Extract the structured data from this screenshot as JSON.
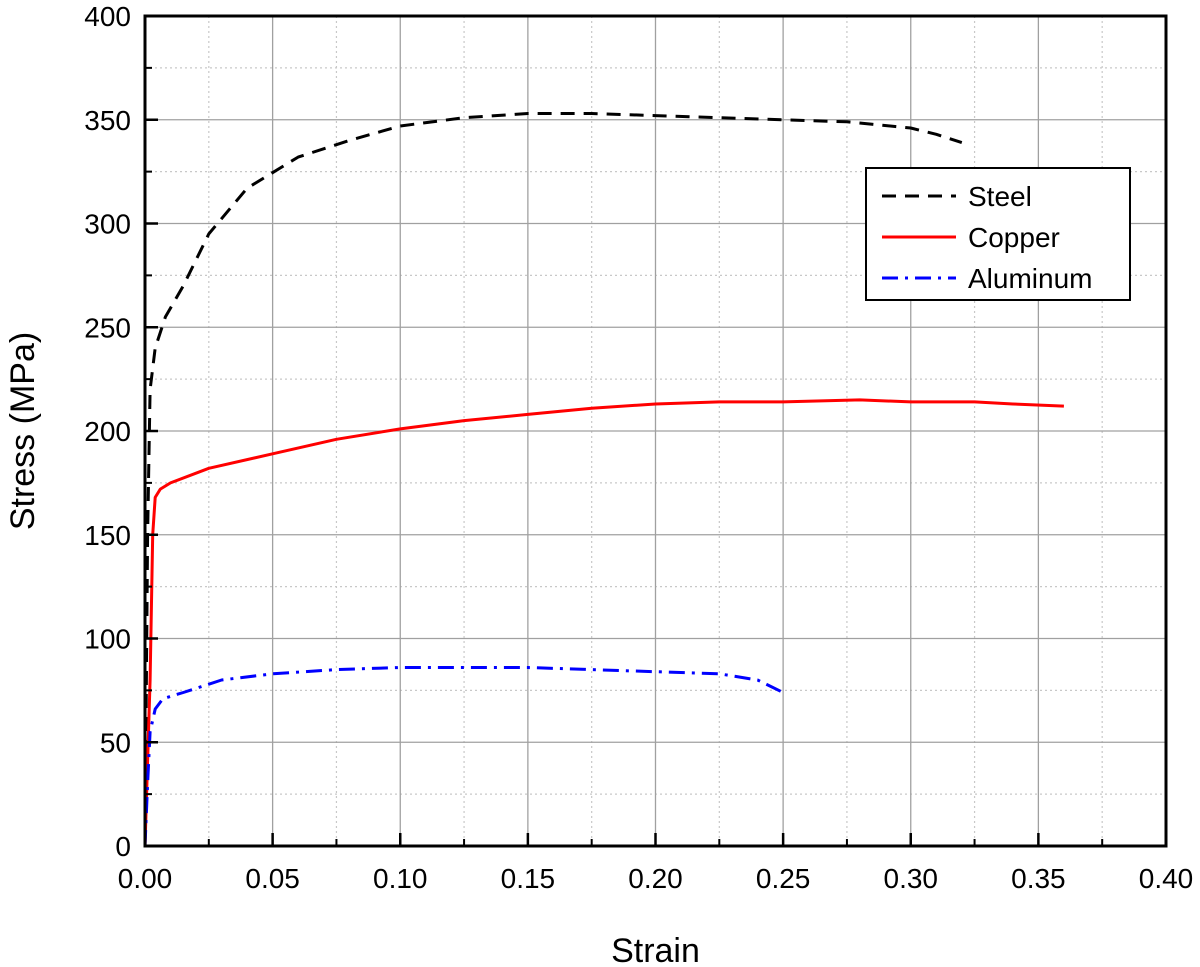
{
  "chart_data": {
    "type": "line",
    "title": "",
    "xlabel": "Strain",
    "ylabel": "Stress (MPa)",
    "xlim": [
      0,
      0.4
    ],
    "ylim": [
      0,
      400
    ],
    "xticks": [
      "0.00",
      "0.05",
      "0.10",
      "0.15",
      "0.20",
      "0.25",
      "0.30",
      "0.35",
      "0.40"
    ],
    "yticks": [
      "0",
      "50",
      "100",
      "150",
      "200",
      "250",
      "300",
      "350",
      "400"
    ],
    "grid": true,
    "legend_position": "top-right",
    "series": [
      {
        "name": "Steel",
        "color": "#000000",
        "style": "dash",
        "points": [
          [
            0,
            0
          ],
          [
            0.001,
            150
          ],
          [
            0.002,
            220
          ],
          [
            0.004,
            240
          ],
          [
            0.008,
            255
          ],
          [
            0.015,
            270
          ],
          [
            0.025,
            295
          ],
          [
            0.04,
            317
          ],
          [
            0.06,
            332
          ],
          [
            0.08,
            340
          ],
          [
            0.1,
            347
          ],
          [
            0.125,
            351
          ],
          [
            0.15,
            353
          ],
          [
            0.175,
            353
          ],
          [
            0.2,
            352
          ],
          [
            0.225,
            351
          ],
          [
            0.25,
            350
          ],
          [
            0.275,
            349
          ],
          [
            0.3,
            346
          ],
          [
            0.31,
            343
          ],
          [
            0.32,
            339
          ]
        ]
      },
      {
        "name": "Copper",
        "color": "#ff0000",
        "style": "solid",
        "points": [
          [
            0,
            0
          ],
          [
            0.002,
            80
          ],
          [
            0.003,
            150
          ],
          [
            0.004,
            168
          ],
          [
            0.006,
            172
          ],
          [
            0.01,
            175
          ],
          [
            0.025,
            182
          ],
          [
            0.05,
            189
          ],
          [
            0.075,
            196
          ],
          [
            0.1,
            201
          ],
          [
            0.125,
            205
          ],
          [
            0.15,
            208
          ],
          [
            0.175,
            211
          ],
          [
            0.2,
            213
          ],
          [
            0.225,
            214
          ],
          [
            0.25,
            214
          ],
          [
            0.28,
            215
          ],
          [
            0.3,
            214
          ],
          [
            0.325,
            214
          ],
          [
            0.34,
            213
          ],
          [
            0.36,
            212
          ]
        ]
      },
      {
        "name": "Aluminum",
        "color": "#0000ff",
        "style": "dashdot",
        "points": [
          [
            0,
            0
          ],
          [
            0.001,
            30
          ],
          [
            0.002,
            55
          ],
          [
            0.004,
            66
          ],
          [
            0.007,
            71
          ],
          [
            0.015,
            74
          ],
          [
            0.03,
            80
          ],
          [
            0.05,
            83
          ],
          [
            0.075,
            85
          ],
          [
            0.1,
            86
          ],
          [
            0.125,
            86
          ],
          [
            0.15,
            86
          ],
          [
            0.175,
            85
          ],
          [
            0.2,
            84
          ],
          [
            0.225,
            83
          ],
          [
            0.24,
            80
          ],
          [
            0.25,
            74
          ]
        ]
      }
    ]
  }
}
